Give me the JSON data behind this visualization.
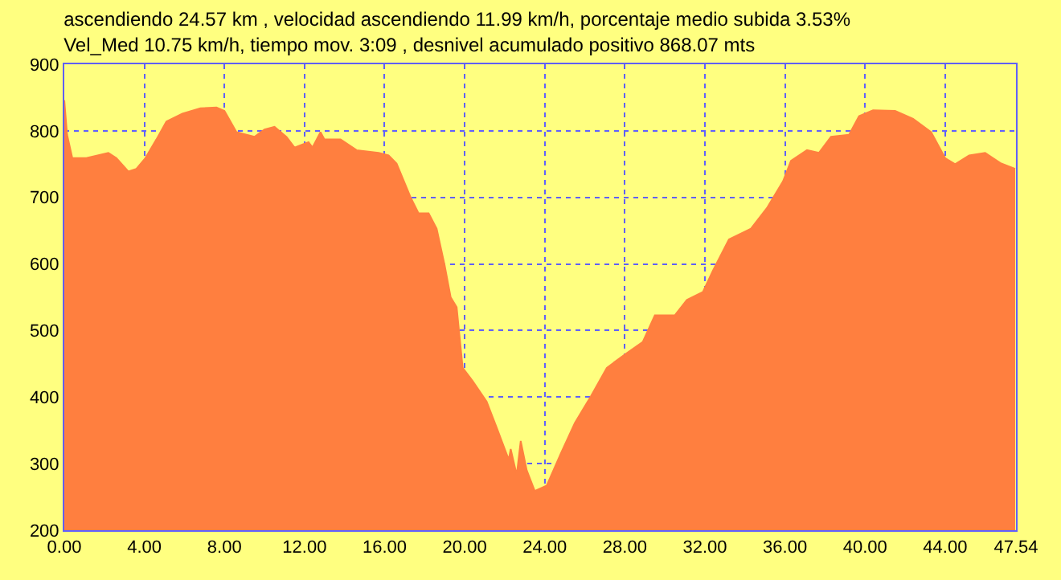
{
  "chart_data": {
    "type": "area",
    "title": "ascendiendo 24.57 km , velocidad ascendiendo 11.99 km/h, porcentaje medio subida 3.53%",
    "subtitle": "Vel_Med 10.75 km/h, tiempo mov. 3:09 , desnivel acumulado positivo 868.07 mts",
    "x": [
      0,
      0.14,
      0.4,
      1.1,
      2.2,
      2.6,
      3.2,
      3.6,
      4.05,
      4.6,
      5.1,
      5.9,
      6.8,
      7.6,
      8.0,
      8.6,
      9.5,
      10.0,
      10.5,
      11.1,
      11.5,
      12.2,
      12.4,
      12.8,
      13.0,
      13.8,
      14.6,
      15.7,
      16.2,
      16.6,
      17.3,
      17.7,
      18.2,
      18.6,
      19.0,
      19.3,
      19.6,
      19.9,
      20.4,
      21.1,
      21.6,
      22.2,
      22.3,
      22.6,
      22.8,
      23.1,
      23.5,
      24.1,
      24.8,
      25.5,
      26.3,
      27.1,
      28.0,
      28.9,
      29.5,
      30.5,
      31.1,
      31.9,
      32.4,
      33.2,
      34.3,
      35.1,
      35.9,
      36.3,
      37.1,
      37.7,
      38.3,
      39.2,
      39.7,
      40.4,
      41.5,
      42.4,
      43.3,
      44.0,
      44.5,
      45.2,
      46.0,
      46.8,
      47.5
    ],
    "series": [
      {
        "color": "#ff7f3f",
        "values": [
          846,
          794,
          759,
          759,
          767,
          759,
          739,
          743,
          759,
          787,
          814,
          826,
          834,
          835,
          830,
          798,
          791,
          802,
          806,
          791,
          775,
          783,
          775,
          798,
          787,
          787,
          771,
          767,
          763,
          751,
          700,
          676,
          676,
          653,
          598,
          550,
          535,
          444,
          424,
          393,
          354,
          306,
          322,
          283,
          334,
          290,
          259,
          267,
          315,
          361,
          401,
          444,
          464,
          483,
          523,
          523,
          546,
          558,
          590,
          637,
          653,
          684,
          724,
          755,
          771,
          767,
          791,
          794,
          822,
          831,
          830,
          818,
          798,
          759,
          750,
          763,
          767,
          751,
          743
        ]
      }
    ],
    "xlim": [
      0,
      47.54
    ],
    "xticks": [
      {
        "value": 0,
        "label": "0.00"
      },
      {
        "value": 4,
        "label": "4.00"
      },
      {
        "value": 8,
        "label": "8.00"
      },
      {
        "value": 12,
        "label": "12.00"
      },
      {
        "value": 16,
        "label": "16.00"
      },
      {
        "value": 20,
        "label": "20.00"
      },
      {
        "value": 24,
        "label": "24.00"
      },
      {
        "value": 28,
        "label": "28.00"
      },
      {
        "value": 32,
        "label": "32.00"
      },
      {
        "value": 36,
        "label": "36.00"
      },
      {
        "value": 40,
        "label": "40.00"
      },
      {
        "value": 44,
        "label": "44.00"
      },
      {
        "value": 47.54,
        "label": "47.54"
      }
    ],
    "ylim": [
      200,
      900
    ],
    "yticks": [
      200,
      300,
      400,
      500,
      600,
      700,
      800,
      900
    ],
    "grid": true,
    "marker": "none",
    "line_style": "solid"
  }
}
